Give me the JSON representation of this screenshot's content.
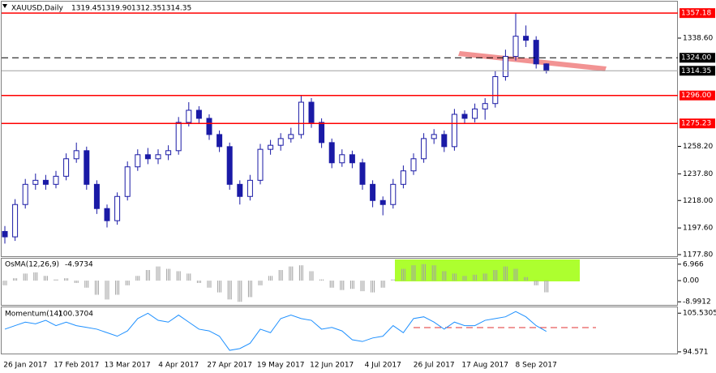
{
  "chart_data": [
    {
      "type": "candlestick",
      "title": "XAUUSD,Daily",
      "last_labels": [
        "1319.45",
        "1319.90",
        "1312.35",
        "1314.35"
      ],
      "categories": [
        null,
        null,
        "26 Jan 2017",
        null,
        null,
        null,
        null,
        "17 Feb 2017",
        null,
        null,
        null,
        null,
        "13 Mar 2017",
        null,
        null,
        null,
        null,
        "4 Apr 2017",
        null,
        null,
        null,
        null,
        "27 Apr 2017",
        null,
        null,
        null,
        null,
        "19 May 2017",
        null,
        null,
        null,
        null,
        "12 Jun 2017",
        null,
        null,
        null,
        null,
        "4 Jul 2017",
        null,
        null,
        null,
        null,
        "26 Jul 2017",
        null,
        null,
        null,
        null,
        "17 Aug 2017",
        null,
        null,
        null,
        null,
        "8 Sep 2017",
        null
      ],
      "open": [
        1195,
        1191,
        1215,
        1230,
        1233,
        1230,
        1236,
        1249,
        1255,
        1230,
        1212,
        1203,
        1221,
        1243,
        1252,
        1249,
        1252,
        1255,
        1276,
        1285,
        1279,
        1267,
        1258,
        1230,
        1221,
        1233,
        1256,
        1259,
        1264,
        1267,
        1291,
        1276,
        1261,
        1246,
        1252,
        1246,
        1230,
        1218,
        1215,
        1230,
        1240,
        1249,
        1264,
        1267,
        1258,
        1282,
        1279,
        1286,
        1290,
        1310,
        1325,
        1340,
        1337,
        1319.45
      ],
      "high": [
        1199,
        1219,
        1234,
        1238,
        1237,
        1240,
        1253,
        1261,
        1258,
        1233,
        1215,
        1224,
        1247,
        1256,
        1257,
        1256,
        1259,
        1280,
        1291,
        1288,
        1282,
        1270,
        1261,
        1233,
        1237,
        1260,
        1263,
        1268,
        1272,
        1296,
        1294,
        1279,
        1264,
        1256,
        1255,
        1249,
        1233,
        1221,
        1234,
        1244,
        1253,
        1268,
        1271,
        1270,
        1286,
        1285,
        1290,
        1294,
        1314,
        1330,
        1357,
        1348,
        1340,
        1319.9
      ],
      "low": [
        1186,
        1188,
        1212,
        1226,
        1226,
        1227,
        1233,
        1246,
        1226,
        1208,
        1198,
        1200,
        1218,
        1240,
        1245,
        1245,
        1248,
        1252,
        1273,
        1275,
        1263,
        1254,
        1226,
        1215,
        1218,
        1230,
        1252,
        1255,
        1261,
        1264,
        1272,
        1257,
        1242,
        1243,
        1242,
        1226,
        1213,
        1207,
        1212,
        1227,
        1237,
        1246,
        1260,
        1254,
        1255,
        1275,
        1276,
        1278,
        1287,
        1307,
        1322,
        1332,
        1316,
        1312.35
      ],
      "close": [
        1191,
        1215,
        1230,
        1233,
        1230,
        1236,
        1249,
        1255,
        1230,
        1212,
        1203,
        1221,
        1243,
        1252,
        1249,
        1252,
        1255,
        1276,
        1285,
        1279,
        1267,
        1258,
        1230,
        1221,
        1233,
        1256,
        1259,
        1264,
        1267,
        1291,
        1276,
        1261,
        1246,
        1252,
        1246,
        1230,
        1218,
        1215,
        1230,
        1240,
        1249,
        1264,
        1267,
        1258,
        1282,
        1279,
        1286,
        1290,
        1310,
        1325,
        1340,
        1337,
        1319.45,
        1314.35
      ],
      "color": "#1a1aa6",
      "ylim": [
        1176.6,
        1365.7
      ],
      "yticks": [
        {
          "value": 1338.6,
          "label": "1338.60"
        },
        {
          "value": 1258.2,
          "label": "1258.20"
        },
        {
          "value": 1237.8,
          "label": "1237.80"
        },
        {
          "value": 1218,
          "label": "1218.00"
        },
        {
          "value": 1197.6,
          "label": "1197.60"
        },
        {
          "value": 1177.8,
          "label": "1177.80"
        }
      ],
      "levels": [
        {
          "value": 1357.18,
          "label": "1357.18",
          "color": "#ff0000",
          "style": "solid"
        },
        {
          "value": 1324,
          "label": "1324.00",
          "color": "#000000",
          "style": "dashed"
        },
        {
          "value": 1314.35,
          "label": "1314.35",
          "color": "#a0a0a0",
          "style": "solid"
        },
        {
          "value": 1296,
          "label": "1296.00",
          "color": "#ff0000",
          "style": "solid"
        },
        {
          "value": 1275.23,
          "label": "1275.23",
          "color": "#ff0000",
          "style": "solid"
        }
      ]
    },
    {
      "type": "bar",
      "title": "OsMA(12,26,9)",
      "color": "#a0a0a0",
      "values": [
        -2,
        1,
        3,
        3.5,
        2,
        0.5,
        1,
        -1,
        -3,
        -6,
        -8,
        -6,
        -2,
        2,
        4.5,
        6,
        5,
        4,
        3,
        -1,
        -3,
        -5,
        -8,
        -9,
        -7,
        -2,
        2,
        4.5,
        6,
        6.5,
        4,
        0.5,
        -3,
        -4,
        -3.5,
        -4.5,
        -5,
        -3,
        0.5,
        5,
        6.5,
        7,
        6.5,
        4,
        3,
        2,
        2.5,
        3,
        4.5,
        6,
        5,
        1.5,
        -2,
        -4.9734
      ],
      "ylim": [
        -10.3,
        8.97
      ],
      "yticks": [
        6.966,
        {
          "value": 0,
          "label": "0.00"
        },
        -8.9912
      ]
    },
    {
      "type": "line",
      "title": "Momentum(14)",
      "color": "#1e90ff",
      "values": [
        101,
        102,
        103,
        102.5,
        103.5,
        102,
        103,
        102,
        101.5,
        101,
        100,
        99,
        100.5,
        104,
        105.5,
        103.5,
        103,
        105,
        103,
        101,
        100.5,
        99,
        95,
        95.5,
        97,
        101,
        100,
        104,
        105,
        104,
        103.5,
        101,
        101.5,
        100.5,
        98,
        97.5,
        98.5,
        99,
        102,
        100,
        104,
        104.5,
        103,
        101,
        103,
        102,
        102,
        103.5,
        104,
        104.5,
        106,
        104.5,
        102,
        100.3704
      ],
      "ylim": [
        94.09,
        106.96
      ],
      "yticks": [
        105.5305,
        94.571
      ]
    }
  ]
}
